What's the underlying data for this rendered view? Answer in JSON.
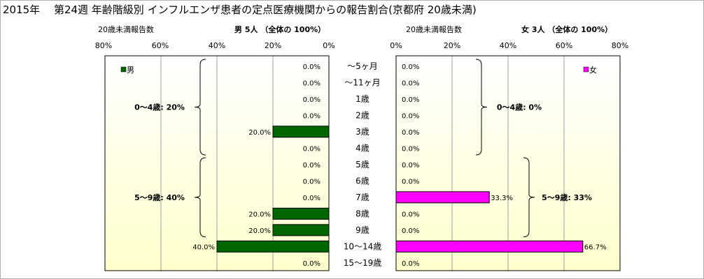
{
  "title": "2015年　 第24週 年齢階級別 インフルエンザ患者の定点医療機関からの報告割合(京都府 20歳未満)",
  "male_header": {
    "axis_label": "20歳未満報告数",
    "summary": "男 5人 （全体の 100%）"
  },
  "female_header": {
    "axis_label": "20歳未満報告数",
    "summary": "女 3人 （全体の 100%）"
  },
  "male_ticks": [
    "80%",
    "60%",
    "40%",
    "20%",
    "0%"
  ],
  "female_ticks": [
    "0%",
    "20%",
    "40%",
    "60%",
    "80%"
  ],
  "colors": {
    "male": "#006600",
    "female": "#ff00ff",
    "plot_top": "#ffffff",
    "plot_bottom": "#ffffcc"
  },
  "chart_data": {
    "type": "bar",
    "orientation": "horizontal-population-pyramid",
    "categories": [
      "〜5ヶ月",
      "〜11ヶ月",
      "1歳",
      "2歳",
      "3歳",
      "4歳",
      "5歳",
      "6歳",
      "7歳",
      "8歳",
      "9歳",
      "10〜14歳",
      "15〜19歳"
    ],
    "xlim": [
      0,
      80
    ],
    "series": [
      {
        "name": "男",
        "values": [
          0,
          0,
          0,
          0,
          20.0,
          0,
          0,
          0,
          0,
          20.0,
          20.0,
          40.0,
          0
        ],
        "labels": [
          "0.0%",
          "0.0%",
          "0.0%",
          "0.0%",
          "20.0%",
          "0.0%",
          "0.0%",
          "0.0%",
          "0.0%",
          "20.0%",
          "20.0%",
          "40.0%",
          "0.0%"
        ]
      },
      {
        "name": "女",
        "values": [
          0,
          0,
          0,
          0,
          0,
          0,
          0,
          0,
          33.3,
          0,
          0,
          66.7,
          0
        ],
        "labels": [
          "0.0%",
          "0.0%",
          "0.0%",
          "0.0%",
          "0.0%",
          "0.0%",
          "0.0%",
          "0.0%",
          "33.3%",
          "0.0%",
          "0.0%",
          "66.7%",
          "0.0%"
        ]
      }
    ],
    "group_annotations": {
      "male": [
        {
          "text": "0〜4歳: 20%",
          "from": 0,
          "to": 5
        },
        {
          "text": "5〜9歳: 40%",
          "from": 6,
          "to": 10
        }
      ],
      "female": [
        {
          "text": "0〜4歳: 0%",
          "from": 0,
          "to": 5
        },
        {
          "text": "5〜9歳: 33%",
          "from": 6,
          "to": 10
        }
      ]
    },
    "grid": true,
    "legend": {
      "male": "top-left",
      "female": "top-right"
    }
  }
}
